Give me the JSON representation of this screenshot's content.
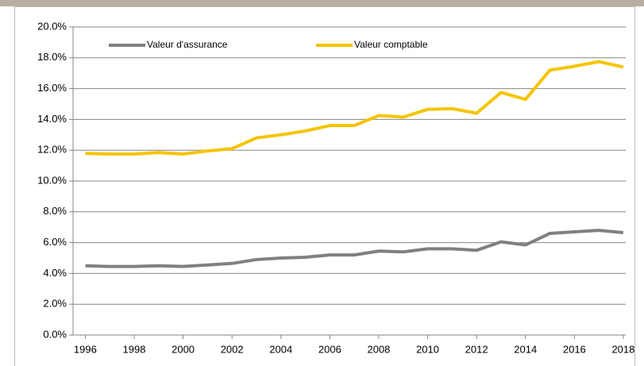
{
  "chart_data": {
    "type": "line",
    "x": [
      1996,
      1997,
      1998,
      1999,
      2000,
      2001,
      2002,
      2003,
      2004,
      2005,
      2006,
      2007,
      2008,
      2009,
      2010,
      2011,
      2012,
      2013,
      2014,
      2015,
      2016,
      2017,
      2018
    ],
    "series": [
      {
        "name": "Valeur d'assurance",
        "color": "#808080",
        "values": [
          4.5,
          4.45,
          4.45,
          4.5,
          4.45,
          4.55,
          4.65,
          4.9,
          5.0,
          5.05,
          5.2,
          5.2,
          5.45,
          5.4,
          5.6,
          5.6,
          5.5,
          6.05,
          5.85,
          6.6,
          6.7,
          6.8,
          6.65
        ]
      },
      {
        "name": "Valeur comptable",
        "color": "#f5c400",
        "values": [
          11.8,
          11.75,
          11.75,
          11.85,
          11.75,
          11.95,
          12.1,
          12.8,
          13.0,
          13.25,
          13.6,
          13.6,
          14.25,
          14.15,
          14.65,
          14.7,
          14.4,
          15.75,
          15.3,
          17.2,
          17.45,
          17.75,
          17.4
        ]
      }
    ],
    "xlim": [
      1995.5,
      2018.1
    ],
    "xticks": [
      1996,
      1998,
      2000,
      2002,
      2004,
      2006,
      2008,
      2010,
      2012,
      2014,
      2016,
      2018
    ],
    "ylim": [
      0,
      20
    ],
    "yticks": [
      {
        "value": 0,
        "label": "0.0%"
      },
      {
        "value": 2,
        "label": "2.0%"
      },
      {
        "value": 4,
        "label": "4.0%"
      },
      {
        "value": 6,
        "label": "6.0%"
      },
      {
        "value": 8,
        "label": "8.0%"
      },
      {
        "value": 10,
        "label": "10.0%"
      },
      {
        "value": 12,
        "label": "12.0%"
      },
      {
        "value": 14,
        "label": "14.0%"
      },
      {
        "value": 16,
        "label": "16.0%"
      },
      {
        "value": 18,
        "label": "18.0%"
      },
      {
        "value": 20,
        "label": "20.0%"
      }
    ],
    "grid": true,
    "legend": "top-left"
  }
}
